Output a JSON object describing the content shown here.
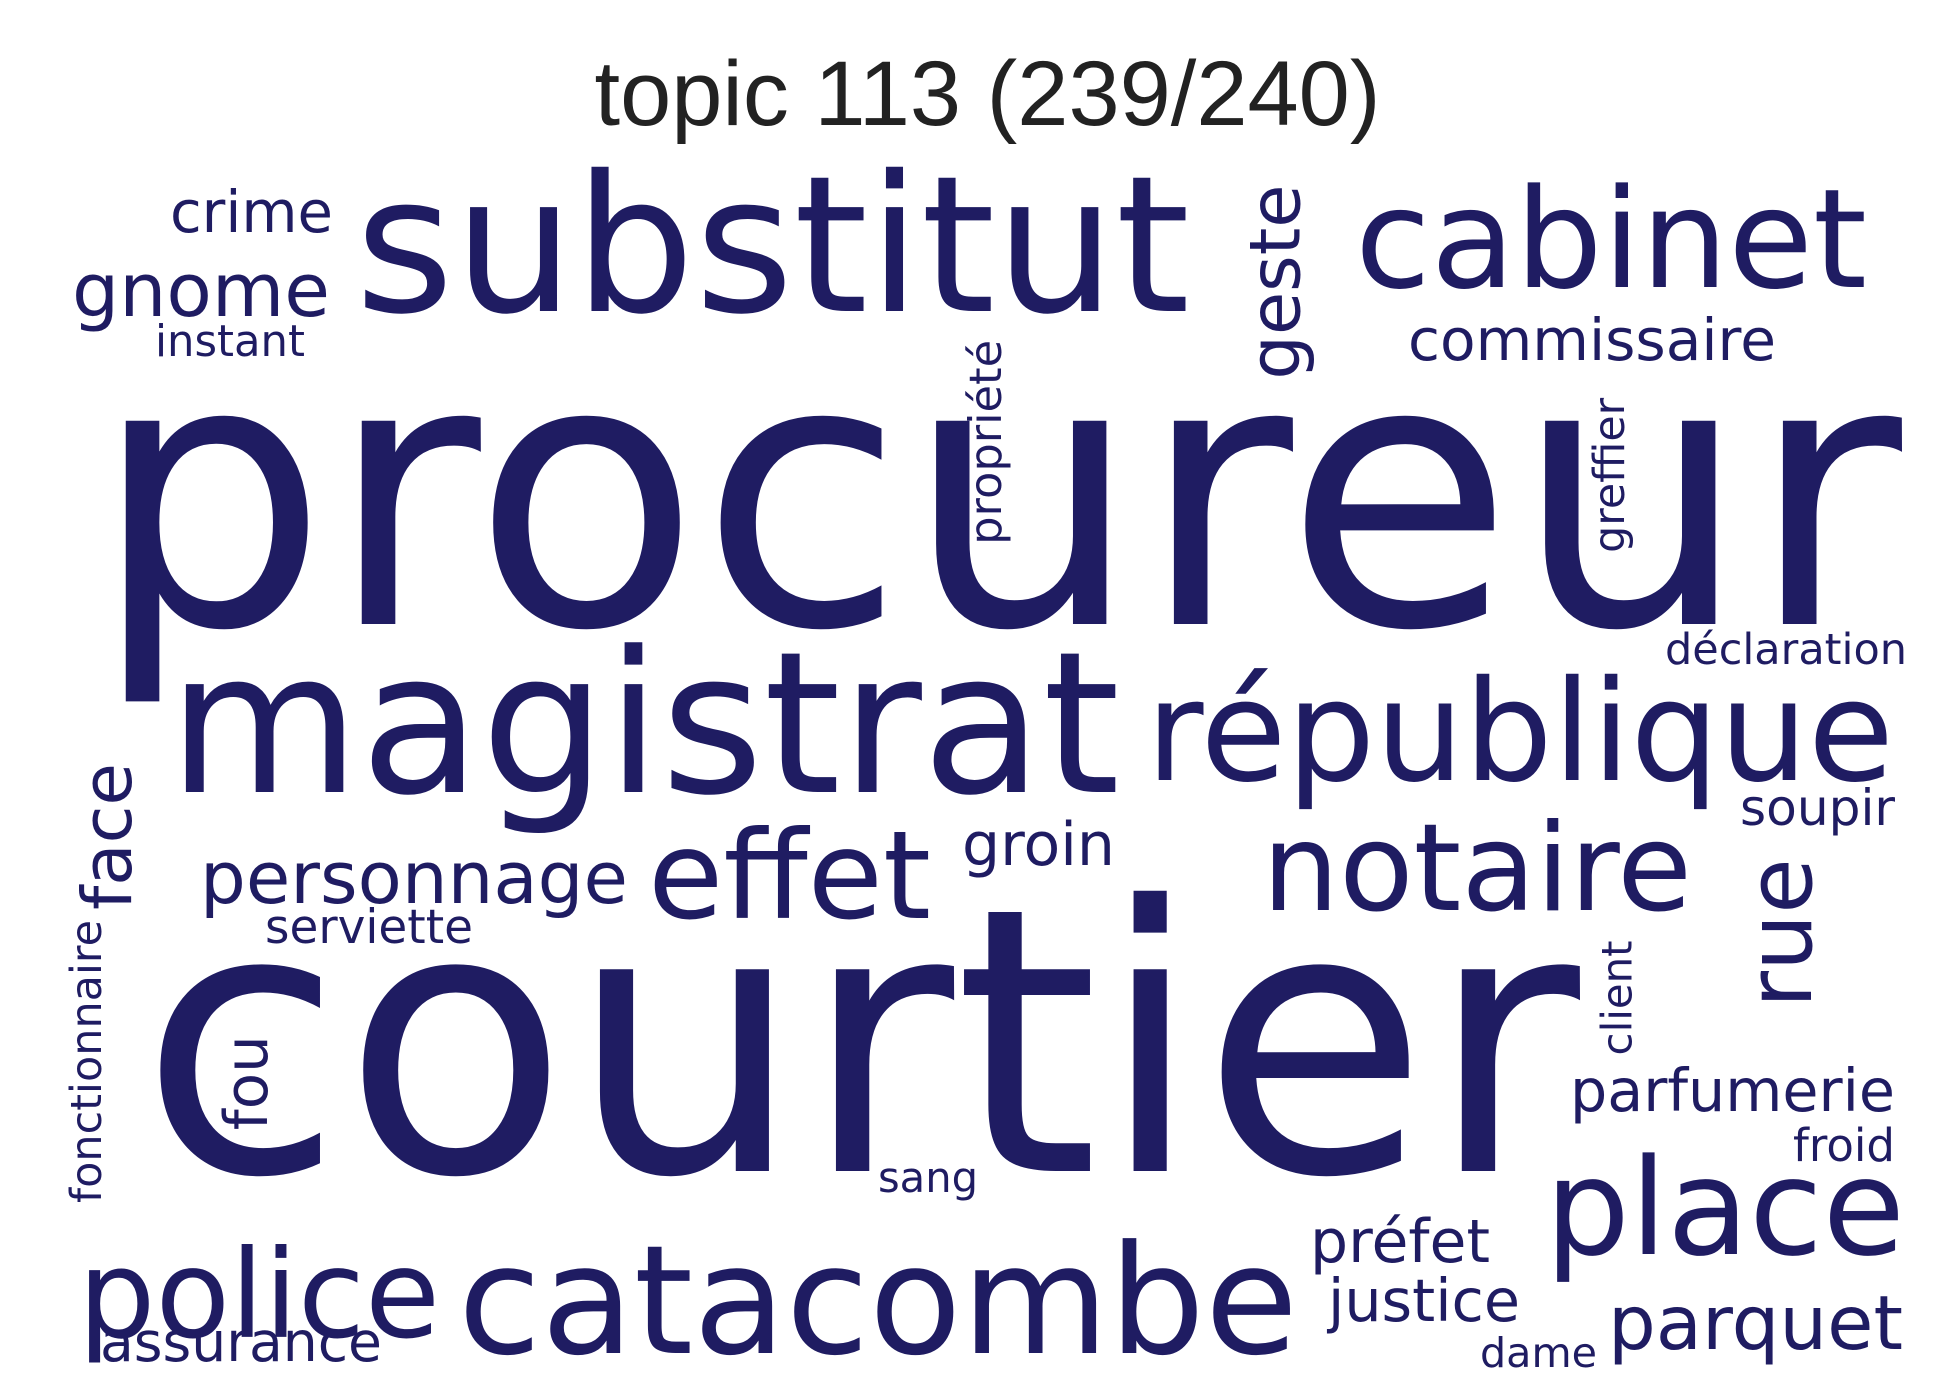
{
  "title": "topic 113 (239/240)",
  "colors": {
    "word": "#1f1c62",
    "title": "#222222",
    "background": "#ffffff"
  },
  "words": [
    {
      "id": "procureur",
      "text": "procureur"
    },
    {
      "id": "courtier",
      "text": "courtier"
    },
    {
      "id": "magistrat",
      "text": "magistrat"
    },
    {
      "id": "substitut",
      "text": "substitut"
    },
    {
      "id": "republique",
      "text": "république"
    },
    {
      "id": "cabinet",
      "text": "cabinet"
    },
    {
      "id": "catacombe",
      "text": "catacombe"
    },
    {
      "id": "notaire",
      "text": "notaire"
    },
    {
      "id": "place",
      "text": "place"
    },
    {
      "id": "police",
      "text": "police"
    },
    {
      "id": "effet",
      "text": "effet"
    },
    {
      "id": "rue",
      "text": "rue"
    },
    {
      "id": "geste",
      "text": "geste"
    },
    {
      "id": "personnage",
      "text": "personnage"
    },
    {
      "id": "gnome",
      "text": "gnome"
    },
    {
      "id": "parquet",
      "text": "parquet"
    },
    {
      "id": "face",
      "text": "face"
    },
    {
      "id": "commissaire",
      "text": "commissaire"
    },
    {
      "id": "parfumerie",
      "text": "parfumerie"
    },
    {
      "id": "justice",
      "text": "justice"
    },
    {
      "id": "prefet",
      "text": "préfet"
    },
    {
      "id": "crime",
      "text": "crime"
    },
    {
      "id": "groin",
      "text": "groin"
    },
    {
      "id": "assurance",
      "text": "assurance"
    },
    {
      "id": "fou",
      "text": "fou"
    },
    {
      "id": "propriete",
      "text": "propriété"
    },
    {
      "id": "greffier",
      "text": "greffier"
    },
    {
      "id": "fonctionnaire",
      "text": "fonctionnaire"
    },
    {
      "id": "declaration",
      "text": "déclaration"
    },
    {
      "id": "soupir",
      "text": "soupir"
    },
    {
      "id": "serviette",
      "text": "serviette"
    },
    {
      "id": "instant",
      "text": "instant"
    },
    {
      "id": "client",
      "text": "client"
    },
    {
      "id": "froid",
      "text": "froid"
    },
    {
      "id": "sang",
      "text": "sang"
    },
    {
      "id": "dame",
      "text": "dame"
    }
  ]
}
